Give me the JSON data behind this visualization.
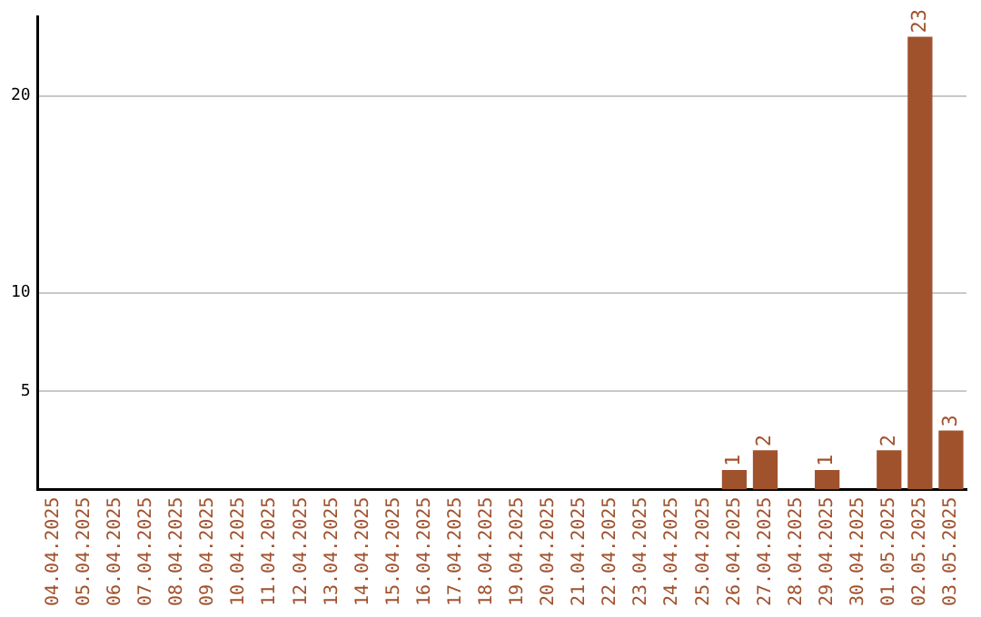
{
  "chart_data": {
    "type": "bar",
    "categories": [
      "04.04.2025",
      "05.04.2025",
      "06.04.2025",
      "07.04.2025",
      "08.04.2025",
      "09.04.2025",
      "10.04.2025",
      "11.04.2025",
      "12.04.2025",
      "13.04.2025",
      "14.04.2025",
      "15.04.2025",
      "16.04.2025",
      "17.04.2025",
      "18.04.2025",
      "19.04.2025",
      "20.04.2025",
      "21.04.2025",
      "22.04.2025",
      "23.04.2025",
      "24.04.2025",
      "25.04.2025",
      "26.04.2025",
      "27.04.2025",
      "28.04.2025",
      "29.04.2025",
      "30.04.2025",
      "01.05.2025",
      "02.05.2025",
      "03.05.2025"
    ],
    "values": [
      0,
      0,
      0,
      0,
      0,
      0,
      0,
      0,
      0,
      0,
      0,
      0,
      0,
      0,
      0,
      0,
      0,
      0,
      0,
      0,
      0,
      0,
      1,
      2,
      0,
      1,
      0,
      2,
      23,
      3
    ],
    "value_labels": [
      null,
      null,
      null,
      null,
      null,
      null,
      null,
      null,
      null,
      null,
      null,
      null,
      null,
      null,
      null,
      null,
      null,
      null,
      null,
      null,
      null,
      null,
      "1",
      "2",
      null,
      "1",
      null,
      "2",
      "23",
      "3"
    ],
    "color": "#a0522d",
    "ylim": [
      0,
      24
    ],
    "yticks": [
      5,
      10,
      20
    ],
    "grid": "y",
    "legend": false
  }
}
